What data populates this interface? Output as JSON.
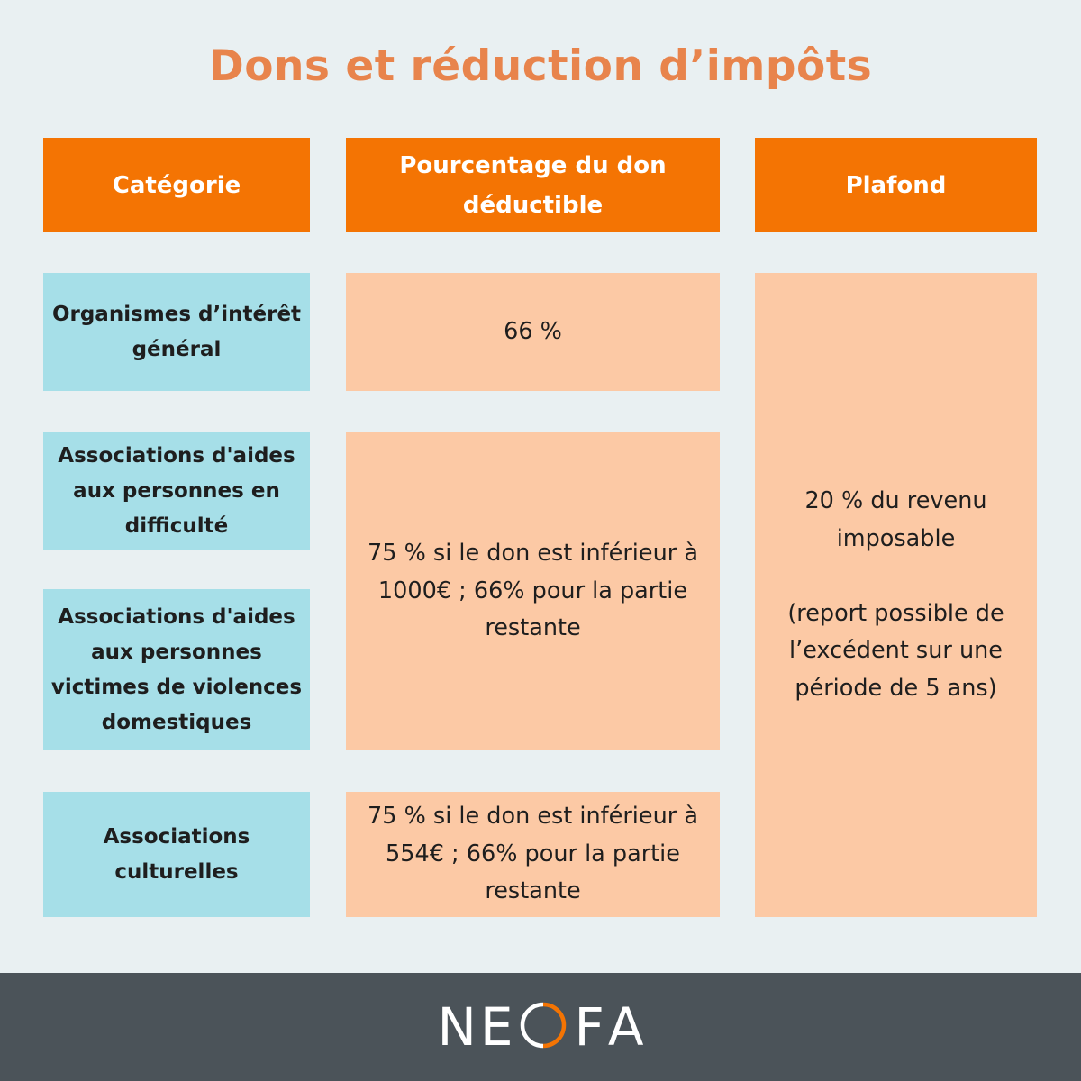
{
  "title": "Dons et réduction d’impôts",
  "headers": {
    "category": "Catégorie",
    "percentage": "Pourcentage du don\ndéductible",
    "ceiling": "Plafond"
  },
  "rows": {
    "general_interest": {
      "category": "Organismes d’intérêt\ngénéral",
      "percentage": "66 %"
    },
    "help_difficulty": {
      "category": "Associations d'aides\naux personnes en\ndifficulté"
    },
    "domestic_violence": {
      "category": "Associations d'aides\naux personnes\nvictimes de violences\ndomestiques"
    },
    "help_percentage": "75 % si le don est inférieur à\n1000€ ; 66% pour la partie\nrestante",
    "cultural": {
      "category": "Associations\nculturelles",
      "percentage": "75 % si le don est inférieur à\n554€ ; 66% pour la partie\nrestante"
    }
  },
  "ceiling_text": "20 % du revenu\nimposable\n\n(report possible de\nl’excédent sur une\npériode de 5 ans)",
  "footer": {
    "logo_letters": [
      "N",
      "E",
      "F",
      "A"
    ],
    "logo_accent": "#f47403",
    "background": "#4b5359"
  },
  "colors": {
    "title": "#e8844c",
    "header": "#f47403",
    "category": "#a6dfe8",
    "value": "#fcc9a5",
    "page": "#e9f0f2"
  }
}
